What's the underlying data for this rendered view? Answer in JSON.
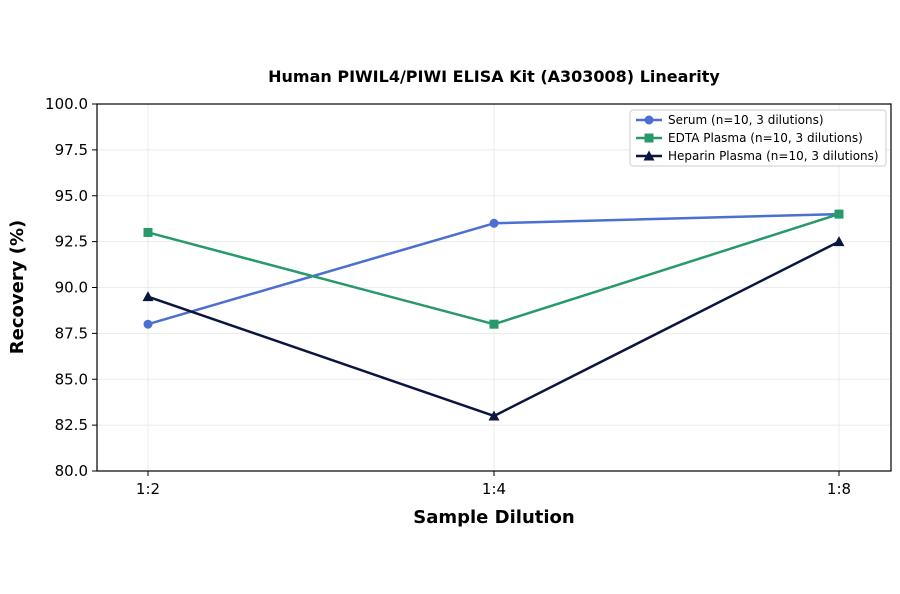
{
  "chart_data": {
    "type": "line",
    "title": "Human PIWIL4/PIWI ELISA Kit (A303008) Linearity",
    "xlabel": "Sample Dilution",
    "ylabel": "Recovery (%)",
    "categories": [
      "1:2",
      "1:4",
      "1:8"
    ],
    "ylim": [
      80.0,
      100.0
    ],
    "yticks": [
      "80.0",
      "82.5",
      "85.0",
      "87.5",
      "90.0",
      "92.5",
      "95.0",
      "97.5",
      "100.0"
    ],
    "grid": true,
    "legend_position": "top-right",
    "series": [
      {
        "name": "Serum (n=10, 3 dilutions)",
        "values": [
          88.0,
          93.5,
          94.0
        ],
        "color": "#4c6fd2",
        "marker": "circle"
      },
      {
        "name": "EDTA Plasma (n=10, 3 dilutions)",
        "values": [
          93.0,
          88.0,
          94.0
        ],
        "color": "#27996b",
        "marker": "square"
      },
      {
        "name": "Heparin Plasma (n=10, 3 dilutions)",
        "values": [
          89.5,
          83.0,
          92.5
        ],
        "color": "#0b1640",
        "marker": "triangle"
      }
    ]
  }
}
